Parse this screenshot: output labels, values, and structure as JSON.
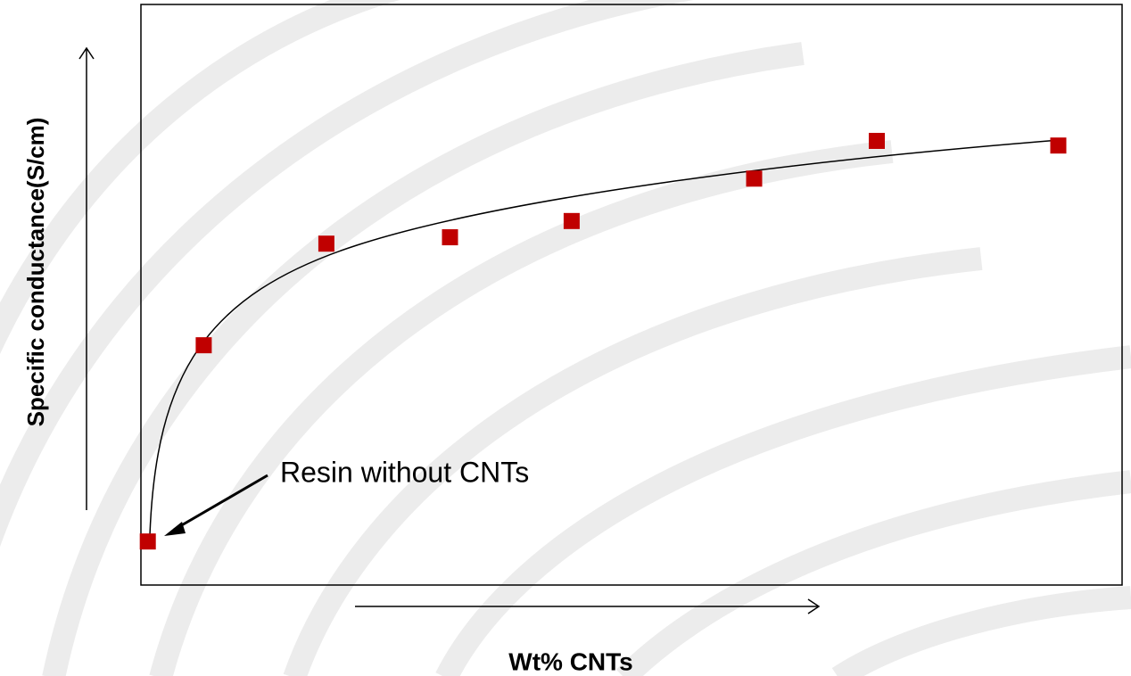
{
  "chart_data": {
    "type": "scatter",
    "x": [
      0.7,
      6.4,
      18.9,
      31.5,
      43.9,
      62.5,
      75.0,
      93.5
    ],
    "values": [
      7.5,
      41.3,
      58.8,
      59.9,
      62.7,
      70.0,
      76.5,
      75.7
    ],
    "color": "#c00000",
    "xlim": [
      0,
      100
    ],
    "ylim": [
      0,
      100
    ],
    "xlabel": "Wt% CNTs",
    "ylabel": "Specific conductance(S/cm)",
    "annotation": "Resin without CNTs"
  }
}
